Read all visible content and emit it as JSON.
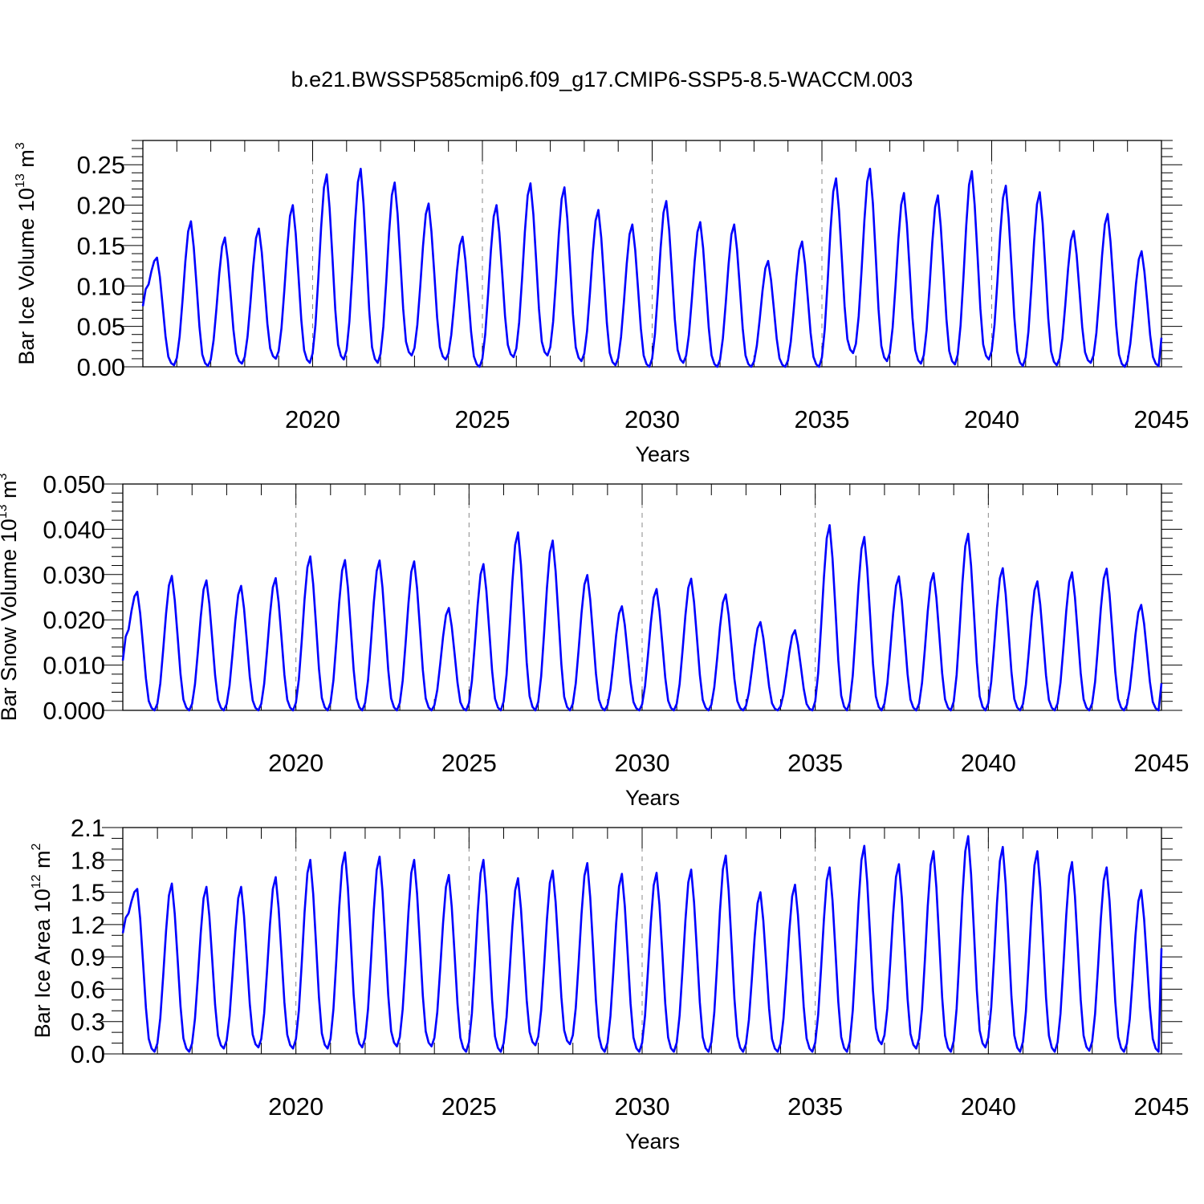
{
  "title": "b.e21.BWSSP585cmip6.f09_g17.CMIP6-SSP5-8.5-WACCM.003",
  "chart_data": [
    {
      "type": "line",
      "title": "b.e21.BWSSP585cmip6.f09_g17.CMIP6-SSP5-8.5-WACCM.003",
      "xlabel": "Years",
      "ylabel": "Bar Ice Volume 10^13 m^3",
      "ylabel_parts": {
        "base": "Bar Ice Volume 10",
        "exp1": "13",
        "unit": " m",
        "exp2": "3"
      },
      "xlim": [
        2015,
        2045
      ],
      "ylim": [
        0,
        0.28
      ],
      "xticks": [
        2020,
        2025,
        2030,
        2035,
        2040,
        2045
      ],
      "yticks": [
        0,
        0.05,
        0.1,
        0.15,
        0.2,
        0.25
      ],
      "ytick_labels": [
        "0.00",
        "0.05",
        "0.10",
        "0.15",
        "0.20",
        "0.25"
      ],
      "yminor_step": 0.01,
      "color": "#0000ff",
      "peaks": [
        0.135,
        0.18,
        0.16,
        0.171,
        0.2,
        0.238,
        0.245,
        0.228,
        0.202,
        0.161,
        0.2,
        0.227,
        0.222,
        0.194,
        0.176,
        0.205,
        0.179,
        0.176,
        0.131,
        0.155,
        0.233,
        0.245,
        0.215,
        0.212,
        0.242,
        0.224,
        0.216,
        0.168,
        0.189,
        0.143
      ],
      "troughs": [
        0.002,
        0.001,
        0.004,
        0.01,
        0.005,
        0.009,
        0.005,
        0.014,
        0.009,
        0.0,
        0.012,
        0.014,
        0.007,
        0.002,
        0.0,
        0.005,
        0.0,
        0.0,
        0.0,
        0.0,
        0.017,
        0.007,
        0.004,
        0.003,
        0.009,
        0.001,
        0.002,
        0.005,
        0.0,
        0.001
      ],
      "start_value": 0.075,
      "end_value": 0.036
    },
    {
      "type": "line",
      "xlabel": "Years",
      "ylabel": "Bar Snow Volume 10^13 m^3",
      "ylabel_parts": {
        "base": "Bar Snow Volume 10",
        "exp1": "13",
        "unit": " m",
        "exp2": "3"
      },
      "xlim": [
        2015,
        2045
      ],
      "ylim": [
        0,
        0.05
      ],
      "xticks": [
        2020,
        2025,
        2030,
        2035,
        2040,
        2045
      ],
      "yticks": [
        0,
        0.01,
        0.02,
        0.03,
        0.04,
        0.05
      ],
      "ytick_labels": [
        "0.000",
        "0.010",
        "0.020",
        "0.030",
        "0.040",
        "0.050"
      ],
      "yminor_step": 0.002,
      "color": "#0000ff",
      "peaks": [
        0.0262,
        0.0297,
        0.0287,
        0.0275,
        0.0292,
        0.034,
        0.0332,
        0.0331,
        0.0329,
        0.0226,
        0.0323,
        0.0393,
        0.0375,
        0.0299,
        0.023,
        0.0268,
        0.0291,
        0.0256,
        0.0195,
        0.0177,
        0.0409,
        0.0383,
        0.0296,
        0.0303,
        0.039,
        0.0314,
        0.0285,
        0.0305,
        0.0313,
        0.0233
      ],
      "troughs": [
        0.0,
        0.0,
        0.0,
        0.0,
        0.0,
        0.0,
        0.0,
        0.0,
        0.0,
        0.0,
        0.0,
        0.0,
        0.0,
        0.0,
        0.0,
        0.0,
        0.0,
        0.0,
        0.0,
        0.0,
        0.0,
        0.0,
        0.0,
        0.0,
        0.0,
        0.0,
        0.0,
        0.0,
        0.0,
        0.0
      ],
      "start_value": 0.011,
      "end_value": 0.006
    },
    {
      "type": "line",
      "xlabel": "Years",
      "ylabel": "Bar Ice Area 10^12 m^2",
      "ylabel_parts": {
        "base": "Bar Ice Area 10",
        "exp1": "12",
        "unit": " m",
        "exp2": "2"
      },
      "xlim": [
        2015,
        2045
      ],
      "ylim": [
        0,
        2.1
      ],
      "xticks": [
        2020,
        2025,
        2030,
        2035,
        2040,
        2045
      ],
      "yticks": [
        0,
        0.3,
        0.6,
        0.9,
        1.2,
        1.5,
        1.8,
        2.1
      ],
      "ytick_labels": [
        "0.0",
        "0.3",
        "0.6",
        "0.9",
        "1.2",
        "1.5",
        "1.8",
        "2.1"
      ],
      "yminor_step": 0.1,
      "color": "#0000ff",
      "peaks": [
        1.53,
        1.58,
        1.55,
        1.55,
        1.64,
        1.8,
        1.87,
        1.83,
        1.8,
        1.66,
        1.8,
        1.63,
        1.7,
        1.77,
        1.67,
        1.68,
        1.71,
        1.84,
        1.5,
        1.57,
        1.73,
        1.93,
        1.76,
        1.88,
        2.02,
        1.92,
        1.88,
        1.78,
        1.73,
        1.52
      ],
      "troughs": [
        0.02,
        0.02,
        0.05,
        0.06,
        0.05,
        0.05,
        0.06,
        0.07,
        0.07,
        0.02,
        0.02,
        0.08,
        0.09,
        0.02,
        0.02,
        0.02,
        0.02,
        0.02,
        0.02,
        0.02,
        0.02,
        0.09,
        0.05,
        0.02,
        0.06,
        0.02,
        0.02,
        0.03,
        0.02,
        0.02
      ],
      "start_value": 1.12,
      "end_value": 0.98
    }
  ]
}
